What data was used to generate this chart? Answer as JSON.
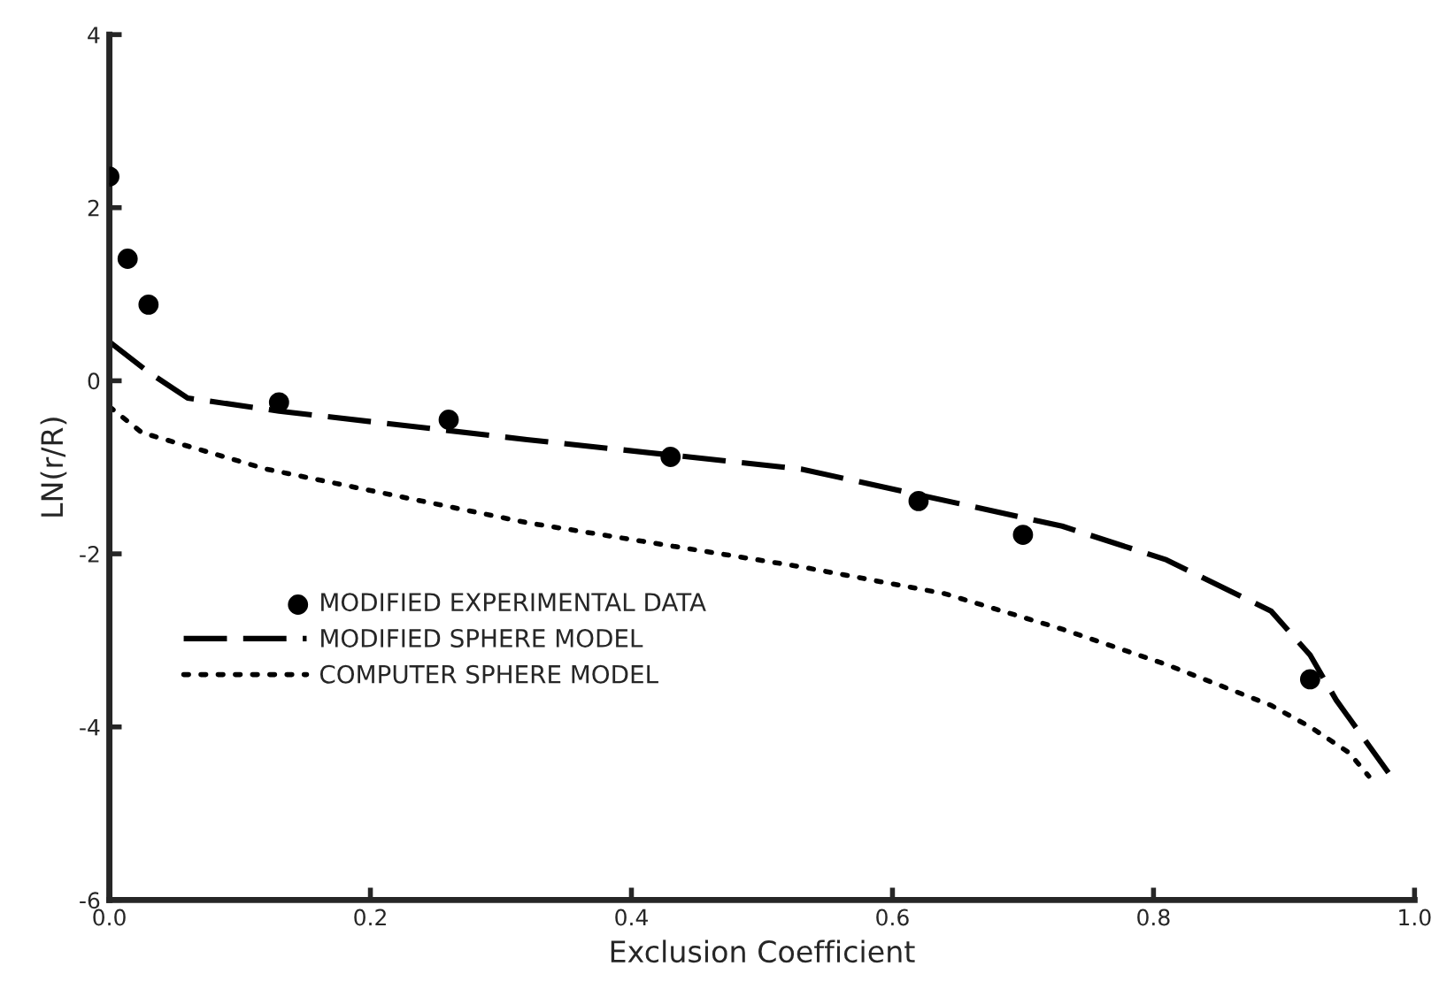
{
  "chart_data": {
    "type": "line",
    "xlabel": "Exclusion Coefficient",
    "ylabel": "LN(r/R)",
    "xlim": [
      0,
      1.0
    ],
    "ylim": [
      -6,
      4
    ],
    "xticks": [
      {
        "value": 0,
        "label": "0.0"
      },
      {
        "value": 0.2,
        "label": "0.2"
      },
      {
        "value": 0.4,
        "label": "0.4"
      },
      {
        "value": 0.6,
        "label": "0.6"
      },
      {
        "value": 0.8,
        "label": "0.8"
      },
      {
        "value": 1.0,
        "label": "1.0"
      }
    ],
    "yticks": [
      {
        "value": -6,
        "label": "-6"
      },
      {
        "value": -4,
        "label": "-4"
      },
      {
        "value": -2,
        "label": "-2"
      },
      0,
      2,
      4
    ],
    "grid": false,
    "legend": "left",
    "series": [
      {
        "name": "MODIFIED EXPERIMENTAL DATA",
        "type": "scatter",
        "marker": "circle",
        "color": "#000000",
        "x": [
          0.0,
          0.014,
          0.03,
          0.13,
          0.26,
          0.43,
          0.62,
          0.7,
          0.92
        ],
        "values": [
          2.36,
          1.41,
          0.88,
          -0.25,
          -0.45,
          -0.88,
          -1.39,
          -1.78,
          -3.45
        ]
      },
      {
        "name": "MODIFIED SPHERE MODEL",
        "line_style": "dashed",
        "color": "#000000",
        "x": [
          0.0,
          0.03,
          0.06,
          0.13,
          0.32,
          0.53,
          0.73,
          0.81,
          0.89,
          0.92,
          0.94,
          0.98
        ],
        "values": [
          0.45,
          0.1,
          -0.2,
          -0.35,
          -0.68,
          -1.02,
          -1.68,
          -2.07,
          -2.66,
          -3.17,
          -3.69,
          -4.53
        ]
      },
      {
        "name": "COMPUTER SPHERE MODEL",
        "line_style": "dotted",
        "color": "#000000",
        "x": [
          0.0,
          0.025,
          0.12,
          0.32,
          0.53,
          0.64,
          0.73,
          0.81,
          0.89,
          0.92,
          0.95,
          0.965
        ],
        "values": [
          -0.3,
          -0.6,
          -1.02,
          -1.64,
          -2.15,
          -2.46,
          -2.87,
          -3.28,
          -3.75,
          -4.0,
          -4.3,
          -4.57
        ]
      }
    ]
  }
}
